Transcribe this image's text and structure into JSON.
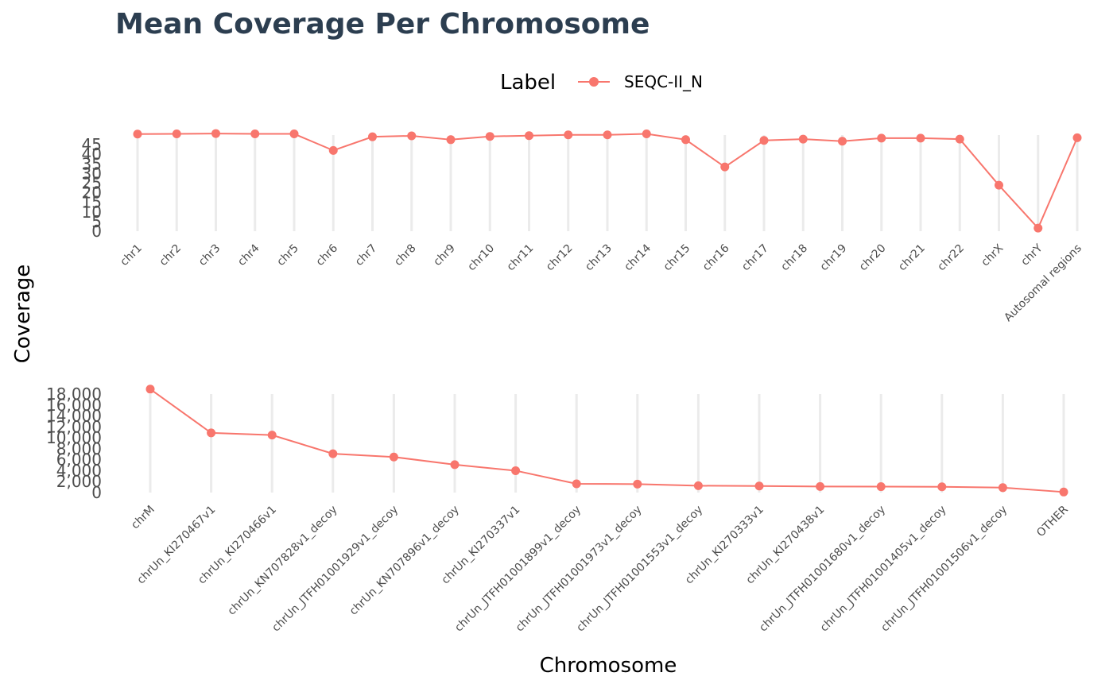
{
  "title": "Mean Coverage Per Chromosome",
  "legend": {
    "title": "Label",
    "entries": [
      "SEQC-II_N"
    ]
  },
  "ylabel": "Coverage",
  "xlabel": "Chromosome",
  "colors": {
    "series": "#f8766d",
    "title": "#2c3e50"
  },
  "chart_data": [
    {
      "type": "line",
      "categories": [
        "chr1",
        "chr2",
        "chr3",
        "chr4",
        "chr5",
        "chr6",
        "chr7",
        "chr8",
        "chr9",
        "chr10",
        "chr11",
        "chr12",
        "chr13",
        "chr14",
        "chr15",
        "chr16",
        "chr17",
        "chr18",
        "chr19",
        "chr20",
        "chr21",
        "chr22",
        "chrX",
        "chrY",
        "Autosomal regions"
      ],
      "series": [
        {
          "name": "SEQC-II_N",
          "values": [
            50.5,
            50.6,
            50.8,
            50.6,
            50.6,
            42,
            49.1,
            49.6,
            47.6,
            49.3,
            49.7,
            50.1,
            50.1,
            50.6,
            47.6,
            33.4,
            47.2,
            47.9,
            46.8,
            48.4,
            48.4,
            47.9,
            23.9,
            1.6,
            48.6
          ]
        }
      ],
      "yticks": [
        0,
        5,
        10,
        15,
        20,
        25,
        30,
        35,
        40,
        45
      ],
      "ylim": [
        0,
        50
      ],
      "grid": "vertical",
      "legend_position": "top"
    },
    {
      "type": "line",
      "categories": [
        "chrM",
        "chrUn_KI270467v1",
        "chrUn_KI270466v1",
        "chrUn_KN707828v1_decoy",
        "chrUn_JTFH01001929v1_decoy",
        "chrUn_KN707896v1_decoy",
        "chrUn_KI270337v1",
        "chrUn_JTFH01001899v1_decoy",
        "chrUn_JTFH01001973v1_decoy",
        "chrUn_JTFH01001553v1_decoy",
        "chrUn_KI270333v1",
        "chrUn_KI270438v1",
        "chrUn_JTFH01001680v1_decoy",
        "chrUn_JTFH01001405v1_decoy",
        "chrUn_JTFH01001506v1_decoy",
        "OTHER"
      ],
      "series": [
        {
          "name": "SEQC-II_N",
          "values": [
            18900,
            10900,
            10500,
            7100,
            6500,
            5100,
            4000,
            1600,
            1550,
            1250,
            1200,
            1100,
            1080,
            1050,
            900,
            100
          ]
        }
      ],
      "yticks": [
        0,
        2000,
        4000,
        6000,
        8000,
        10000,
        12000,
        14000,
        16000,
        18000
      ],
      "ytick_labels": [
        "0",
        "2,000",
        "4,000",
        "6,000",
        "8,000",
        "10,000",
        "12,000",
        "14,000",
        "16,000",
        "18,000"
      ],
      "ylim": [
        0,
        18000
      ],
      "grid": "vertical"
    }
  ]
}
